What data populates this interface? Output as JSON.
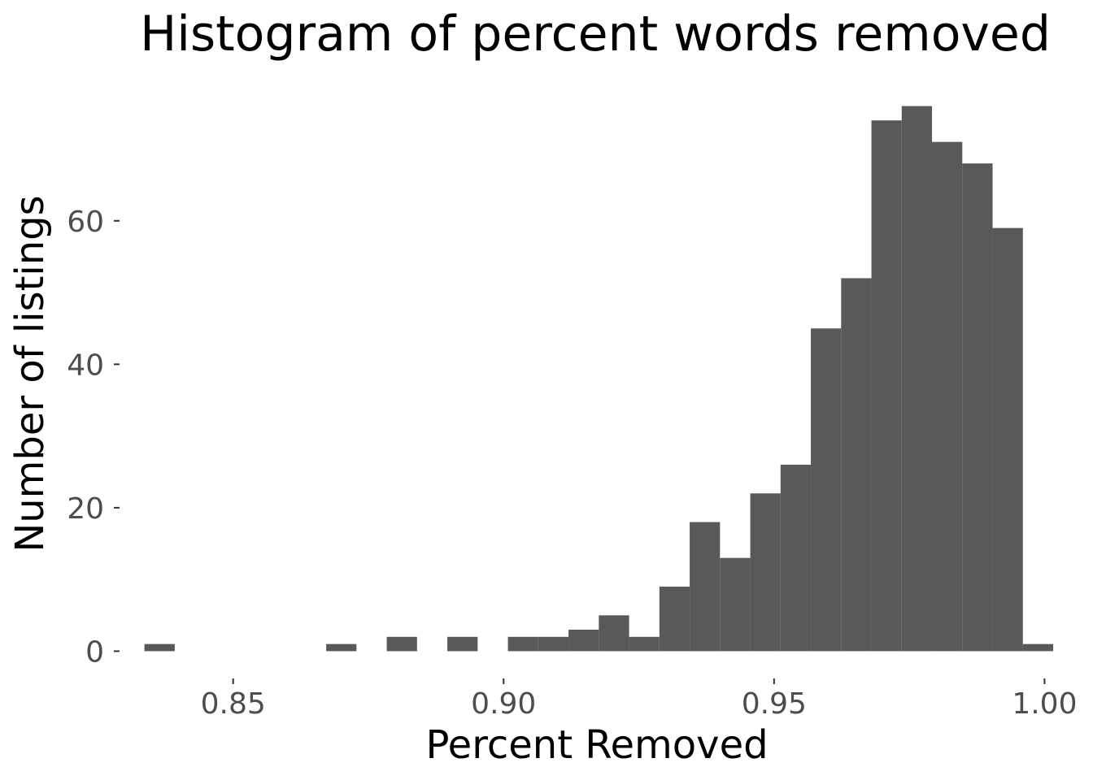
{
  "chart_data": {
    "type": "bar",
    "title": "Histogram of percent words removed",
    "xlabel": "Percent Removed",
    "ylabel": "Number of listings",
    "xlim": [
      0.829,
      1.004
    ],
    "ylim": [
      -3.8,
      79.8
    ],
    "x_ticks": [
      {
        "value": 0.85,
        "label": "0.85"
      },
      {
        "value": 0.9,
        "label": "0.90"
      },
      {
        "value": 0.95,
        "label": "0.95"
      },
      {
        "value": 1.0,
        "label": "1.00"
      }
    ],
    "y_ticks": [
      {
        "value": 0,
        "label": "0"
      },
      {
        "value": 20,
        "label": "20"
      },
      {
        "value": 40,
        "label": "40"
      },
      {
        "value": 60,
        "label": "60"
      }
    ],
    "grid": false,
    "bar_color": "#595959",
    "bins": [
      {
        "x0": 0.8336,
        "x1": 0.8392,
        "count": 1
      },
      {
        "x0": 0.8392,
        "x1": 0.8448,
        "count": 0
      },
      {
        "x0": 0.8448,
        "x1": 0.8504,
        "count": 0
      },
      {
        "x0": 0.8504,
        "x1": 0.856,
        "count": 0
      },
      {
        "x0": 0.856,
        "x1": 0.8616,
        "count": 0
      },
      {
        "x0": 0.8616,
        "x1": 0.8672,
        "count": 0
      },
      {
        "x0": 0.8672,
        "x1": 0.8728,
        "count": 1
      },
      {
        "x0": 0.8728,
        "x1": 0.8784,
        "count": 0
      },
      {
        "x0": 0.8784,
        "x1": 0.884,
        "count": 2
      },
      {
        "x0": 0.884,
        "x1": 0.8896,
        "count": 0
      },
      {
        "x0": 0.8896,
        "x1": 0.8952,
        "count": 2
      },
      {
        "x0": 0.8952,
        "x1": 0.9008,
        "count": 0
      },
      {
        "x0": 0.9008,
        "x1": 0.9064,
        "count": 2
      },
      {
        "x0": 0.9064,
        "x1": 0.912,
        "count": 2
      },
      {
        "x0": 0.912,
        "x1": 0.9176,
        "count": 3
      },
      {
        "x0": 0.9176,
        "x1": 0.9232,
        "count": 5
      },
      {
        "x0": 0.9232,
        "x1": 0.9288,
        "count": 2
      },
      {
        "x0": 0.9288,
        "x1": 0.9344,
        "count": 9
      },
      {
        "x0": 0.9344,
        "x1": 0.94,
        "count": 18
      },
      {
        "x0": 0.94,
        "x1": 0.9456,
        "count": 13
      },
      {
        "x0": 0.9456,
        "x1": 0.9512,
        "count": 22
      },
      {
        "x0": 0.9512,
        "x1": 0.9568,
        "count": 26
      },
      {
        "x0": 0.9568,
        "x1": 0.9624,
        "count": 45
      },
      {
        "x0": 0.9624,
        "x1": 0.968,
        "count": 52
      },
      {
        "x0": 0.968,
        "x1": 0.9736,
        "count": 74
      },
      {
        "x0": 0.9736,
        "x1": 0.9792,
        "count": 76
      },
      {
        "x0": 0.9792,
        "x1": 0.9848,
        "count": 71
      },
      {
        "x0": 0.9848,
        "x1": 0.9904,
        "count": 68
      },
      {
        "x0": 0.9904,
        "x1": 0.996,
        "count": 59
      },
      {
        "x0": 0.996,
        "x1": 1.0016,
        "count": 1
      }
    ]
  }
}
